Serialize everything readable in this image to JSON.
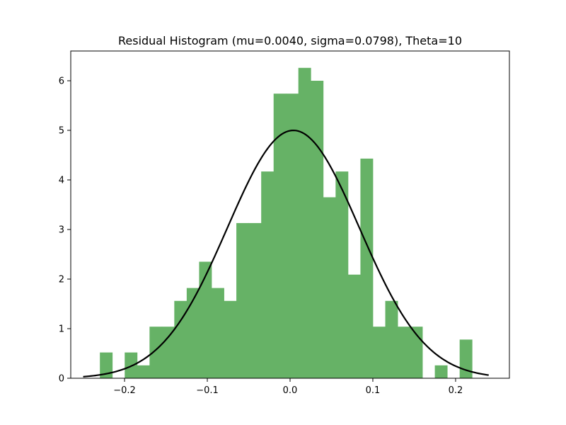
{
  "chart_data": {
    "type": "bar",
    "title": "Residual Histogram (mu=0.0040, sigma=0.0798), Theta=10",
    "xlabel": "",
    "ylabel": "",
    "xlim": [
      -0.265,
      0.265
    ],
    "ylim": [
      0,
      6.6
    ],
    "xticks": [
      -0.2,
      -0.1,
      0.0,
      0.1,
      0.2
    ],
    "xtick_labels": [
      "−0.2",
      "−0.1",
      "0.0",
      "0.1",
      "0.2"
    ],
    "yticks": [
      0,
      1,
      2,
      3,
      4,
      5,
      6
    ],
    "ytick_labels": [
      "0",
      "1",
      "2",
      "3",
      "4",
      "5",
      "6"
    ],
    "grid": false,
    "bar_color": "#66b266",
    "curve_color": "#000000",
    "bins": {
      "edges": [
        -0.2298,
        -0.2148,
        -0.1998,
        -0.1848,
        -0.1698,
        -0.1549,
        -0.1399,
        -0.1249,
        -0.1099,
        -0.0949,
        -0.0799,
        -0.0649,
        -0.0499,
        -0.0349,
        -0.0199,
        -0.0049,
        0.01,
        0.025,
        0.04,
        0.055,
        0.07,
        0.085,
        0.1,
        0.115,
        0.13,
        0.1449,
        0.1599,
        0.1749,
        0.1899,
        0.2049,
        0.2199
      ],
      "densities": [
        0.52,
        0.0,
        0.52,
        0.26,
        1.04,
        1.04,
        1.56,
        1.82,
        2.35,
        1.82,
        1.56,
        3.13,
        3.13,
        4.17,
        5.74,
        5.74,
        6.26,
        6.0,
        3.65,
        4.17,
        2.09,
        4.43,
        1.04,
        1.56,
        1.04,
        1.04,
        0.0,
        0.26,
        0.0,
        0.78
      ]
    },
    "fit_curve": {
      "type": "normal-pdf",
      "mu": 0.004,
      "sigma": 0.0798,
      "x_range": [
        -0.25,
        0.24
      ]
    }
  }
}
